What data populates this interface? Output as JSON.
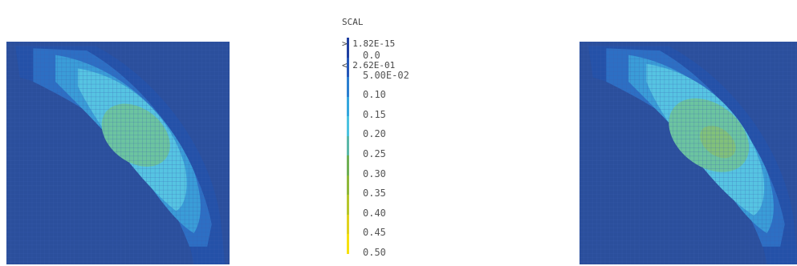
{
  "scale": {
    "title": "SCAL",
    "max_line": "> 1.82E-15",
    "min_line": "< 2.62E-01"
  },
  "legend": {
    "labels": [
      "0.0",
      "5.00E-02",
      "0.10",
      "0.15",
      "0.20",
      "0.25",
      "0.30",
      "0.35",
      "0.40",
      "0.45",
      "0.50"
    ],
    "colors": [
      "#1f3fa0",
      "#2457b8",
      "#2b7fd0",
      "#35a7de",
      "#4cc3e0",
      "#5bb8a8",
      "#6fb055",
      "#8fb83a",
      "#b6c62c",
      "#e0d21e",
      "#f6e10f"
    ]
  },
  "plots": {
    "background_color": "#2b4f9c",
    "grid_color": "#3a5fb0",
    "band_colors": [
      "#2451a8",
      "#2d6fc4",
      "#3a9dd8",
      "#56c4e2",
      "#6cc4a0",
      "#82c17a"
    ]
  }
}
